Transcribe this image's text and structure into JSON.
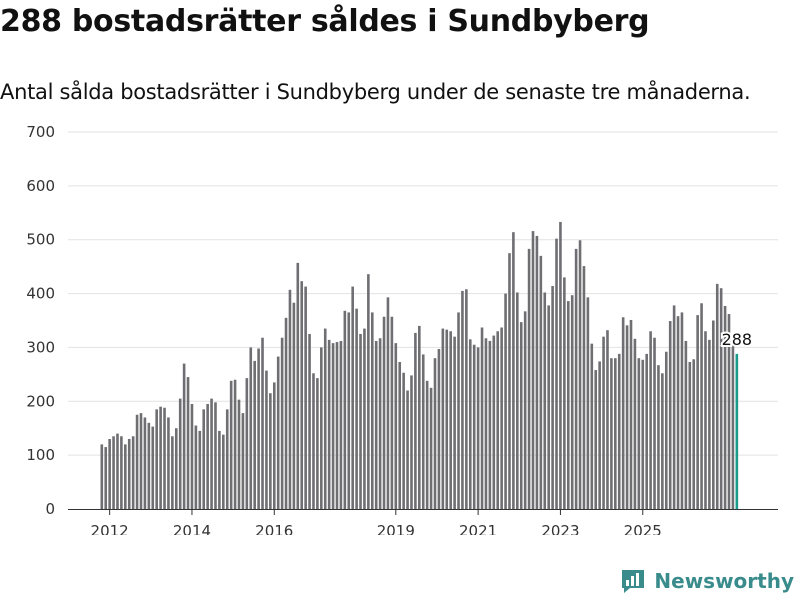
{
  "title": "288 bostadsrätter såldes i Sundbyberg",
  "subtitle": "Antal sålda bostadsrätter i Sundbyberg under de senaste tre månaderna.",
  "brand": {
    "name": "Newsworthy",
    "icon": "newsworthy-logo-icon",
    "color": "#3a8c8c"
  },
  "colors": {
    "bars": "#6e6e73",
    "highlight": "#1a9a8a"
  },
  "chart_data": {
    "type": "bar",
    "title": "288 bostadsrätter såldes i Sundbyberg",
    "subtitle": "Antal sålda bostadsrätter i Sundbyberg under de senaste tre månaderna.",
    "xlabel": "",
    "ylabel": "",
    "ylim": [
      0,
      700
    ],
    "yticks": [
      0,
      100,
      200,
      300,
      400,
      500,
      600,
      700
    ],
    "xticks": [
      "2012",
      "2014",
      "2016",
      "2019",
      "2021",
      "2023",
      "2025"
    ],
    "xtick_index": [
      2,
      23,
      44,
      75,
      96,
      117,
      138
    ],
    "grid": true,
    "highlight_label": "288",
    "values": [
      120,
      115,
      130,
      135,
      140,
      135,
      120,
      130,
      135,
      175,
      178,
      170,
      160,
      153,
      185,
      190,
      188,
      170,
      135,
      150,
      205,
      270,
      245,
      195,
      155,
      145,
      185,
      195,
      205,
      198,
      145,
      138,
      185,
      238,
      240,
      203,
      178,
      243,
      300,
      275,
      298,
      318,
      257,
      215,
      235,
      283,
      318,
      355,
      407,
      383,
      457,
      423,
      413,
      325,
      252,
      243,
      300,
      335,
      314,
      308,
      310,
      312,
      368,
      365,
      413,
      372,
      325,
      335,
      436,
      365,
      312,
      317,
      357,
      393,
      357,
      308,
      273,
      253,
      220,
      248,
      327,
      340,
      287,
      238,
      225,
      280,
      297,
      335,
      333,
      330,
      320,
      365,
      405,
      408,
      315,
      305,
      300,
      337,
      317,
      312,
      322,
      330,
      337,
      400,
      475,
      514,
      402,
      347,
      367,
      483,
      516,
      507,
      470,
      402,
      378,
      414,
      502,
      533,
      430,
      386,
      397,
      483,
      499,
      451,
      393,
      307,
      258,
      274,
      320,
      332,
      280,
      280,
      288,
      356,
      341,
      351,
      316,
      280,
      277,
      288,
      330,
      318,
      267,
      252,
      292,
      349,
      378,
      358,
      365,
      312,
      273,
      278,
      360,
      382,
      330,
      314,
      350,
      418,
      410,
      377,
      362,
      308,
      288
    ]
  }
}
